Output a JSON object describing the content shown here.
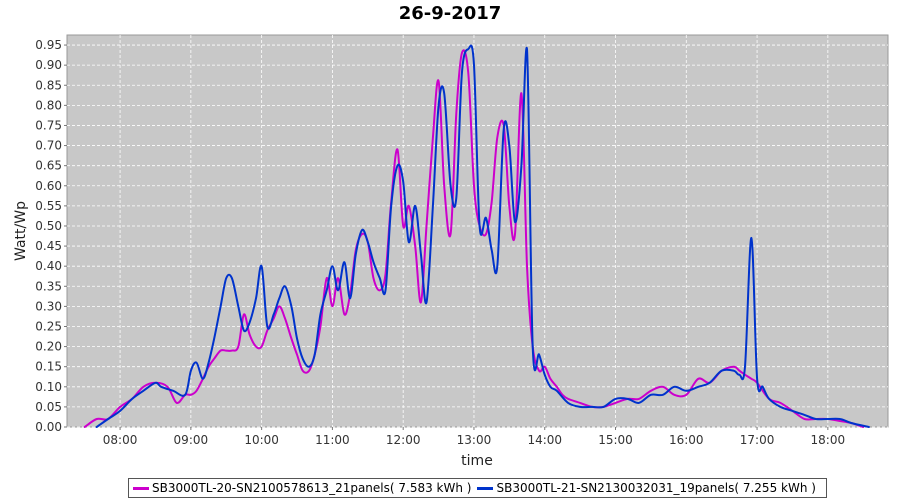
{
  "chart_data": {
    "type": "line",
    "title": "26-9-2017",
    "xlabel": "time",
    "ylabel": "Watt/Wp",
    "xlim": [
      7.25,
      18.85
    ],
    "ylim": [
      0,
      0.975
    ],
    "x_ticks": [
      8,
      9,
      10,
      11,
      12,
      13,
      14,
      15,
      16,
      17,
      18
    ],
    "x_tick_labels": [
      "08:00",
      "09:00",
      "10:00",
      "11:00",
      "12:00",
      "13:00",
      "14:00",
      "15:00",
      "16:00",
      "17:00",
      "18:00"
    ],
    "y_ticks": [
      0,
      0.05,
      0.1,
      0.15,
      0.2,
      0.25,
      0.3,
      0.35,
      0.4,
      0.45,
      0.5,
      0.55,
      0.6,
      0.65,
      0.7,
      0.75,
      0.8,
      0.85,
      0.9,
      0.95
    ],
    "y_tick_labels": [
      "0.00",
      "0.05",
      "0.10",
      "0.15",
      "0.20",
      "0.25",
      "0.30",
      "0.35",
      "0.40",
      "0.45",
      "0.50",
      "0.55",
      "0.60",
      "0.65",
      "0.70",
      "0.75",
      "0.80",
      "0.85",
      "0.90",
      "0.95"
    ],
    "grid": true,
    "legend_position": "bottom",
    "series": [
      {
        "name": "SB3000TL-20-SN2100578613_21panels( 7.583 kWh )",
        "color": "#cc00cc",
        "x": [
          7.5,
          7.67,
          7.83,
          8.0,
          8.17,
          8.33,
          8.5,
          8.67,
          8.8,
          8.92,
          9.0,
          9.08,
          9.17,
          9.25,
          9.33,
          9.42,
          9.5,
          9.58,
          9.67,
          9.75,
          9.83,
          9.92,
          10.0,
          10.08,
          10.17,
          10.25,
          10.33,
          10.42,
          10.5,
          10.58,
          10.67,
          10.75,
          10.83,
          10.92,
          11.0,
          11.08,
          11.17,
          11.25,
          11.33,
          11.42,
          11.5,
          11.58,
          11.67,
          11.75,
          11.83,
          11.92,
          12.0,
          12.08,
          12.17,
          12.25,
          12.33,
          12.42,
          12.5,
          12.58,
          12.67,
          12.75,
          12.83,
          12.92,
          13.0,
          13.08,
          13.17,
          13.25,
          13.33,
          13.42,
          13.5,
          13.58,
          13.67,
          13.75,
          13.83,
          13.92,
          14.0,
          14.08,
          14.17,
          14.25,
          14.33,
          14.5,
          14.67,
          14.83,
          15.0,
          15.17,
          15.33,
          15.5,
          15.67,
          15.83,
          16.0,
          16.17,
          16.33,
          16.5,
          16.67,
          16.75,
          16.83,
          16.92,
          17.0,
          17.17,
          17.33,
          17.5,
          17.67,
          17.83,
          18.0,
          18.17,
          18.33,
          18.5
        ],
        "y": [
          0.0,
          0.02,
          0.02,
          0.05,
          0.07,
          0.1,
          0.11,
          0.1,
          0.06,
          0.08,
          0.08,
          0.09,
          0.12,
          0.15,
          0.17,
          0.19,
          0.19,
          0.19,
          0.2,
          0.28,
          0.23,
          0.2,
          0.2,
          0.24,
          0.27,
          0.3,
          0.27,
          0.22,
          0.18,
          0.14,
          0.14,
          0.18,
          0.25,
          0.37,
          0.3,
          0.37,
          0.28,
          0.33,
          0.44,
          0.48,
          0.46,
          0.37,
          0.34,
          0.38,
          0.56,
          0.69,
          0.5,
          0.55,
          0.45,
          0.31,
          0.5,
          0.72,
          0.86,
          0.6,
          0.48,
          0.78,
          0.93,
          0.88,
          0.6,
          0.5,
          0.48,
          0.56,
          0.72,
          0.75,
          0.55,
          0.48,
          0.83,
          0.4,
          0.2,
          0.14,
          0.15,
          0.12,
          0.1,
          0.08,
          0.07,
          0.06,
          0.05,
          0.05,
          0.06,
          0.07,
          0.07,
          0.09,
          0.1,
          0.08,
          0.08,
          0.12,
          0.11,
          0.14,
          0.15,
          0.14,
          0.13,
          0.12,
          0.11,
          0.07,
          0.06,
          0.04,
          0.02,
          0.02,
          0.02,
          0.015,
          0.01,
          0.0
        ]
      },
      {
        "name": "SB3000TL-21-SN2130032031_19panels( 7.255 kWh )",
        "color": "#0033cc",
        "x": [
          7.67,
          7.83,
          8.0,
          8.17,
          8.33,
          8.5,
          8.58,
          8.75,
          8.92,
          9.0,
          9.08,
          9.17,
          9.25,
          9.33,
          9.42,
          9.5,
          9.58,
          9.67,
          9.75,
          9.83,
          9.92,
          10.0,
          10.08,
          10.17,
          10.25,
          10.33,
          10.42,
          10.5,
          10.58,
          10.67,
          10.75,
          10.83,
          10.92,
          11.0,
          11.08,
          11.17,
          11.25,
          11.33,
          11.42,
          11.5,
          11.58,
          11.67,
          11.75,
          11.83,
          11.92,
          12.0,
          12.08,
          12.17,
          12.25,
          12.33,
          12.42,
          12.5,
          12.58,
          12.67,
          12.75,
          12.83,
          12.92,
          13.0,
          13.08,
          13.17,
          13.25,
          13.33,
          13.42,
          13.5,
          13.58,
          13.67,
          13.75,
          13.83,
          13.92,
          14.0,
          14.08,
          14.17,
          14.33,
          14.5,
          14.67,
          14.83,
          15.0,
          15.17,
          15.33,
          15.5,
          15.67,
          15.83,
          16.0,
          16.17,
          16.33,
          16.5,
          16.67,
          16.75,
          16.83,
          16.92,
          17.0,
          17.08,
          17.17,
          17.33,
          17.5,
          17.67,
          17.83,
          18.0,
          18.17,
          18.33,
          18.58
        ],
        "y": [
          0.0,
          0.02,
          0.04,
          0.07,
          0.09,
          0.11,
          0.1,
          0.09,
          0.08,
          0.14,
          0.16,
          0.12,
          0.16,
          0.22,
          0.3,
          0.37,
          0.37,
          0.3,
          0.24,
          0.26,
          0.32,
          0.4,
          0.25,
          0.28,
          0.32,
          0.35,
          0.3,
          0.22,
          0.17,
          0.15,
          0.18,
          0.28,
          0.34,
          0.4,
          0.34,
          0.41,
          0.32,
          0.43,
          0.49,
          0.46,
          0.41,
          0.37,
          0.34,
          0.55,
          0.65,
          0.61,
          0.46,
          0.55,
          0.43,
          0.31,
          0.55,
          0.8,
          0.83,
          0.6,
          0.57,
          0.88,
          0.94,
          0.9,
          0.5,
          0.52,
          0.44,
          0.4,
          0.74,
          0.7,
          0.51,
          0.65,
          0.94,
          0.2,
          0.18,
          0.13,
          0.1,
          0.09,
          0.06,
          0.05,
          0.05,
          0.05,
          0.07,
          0.07,
          0.06,
          0.08,
          0.08,
          0.1,
          0.09,
          0.1,
          0.11,
          0.14,
          0.14,
          0.13,
          0.15,
          0.47,
          0.12,
          0.1,
          0.07,
          0.05,
          0.04,
          0.03,
          0.02,
          0.02,
          0.02,
          0.01,
          0.0
        ]
      }
    ]
  }
}
